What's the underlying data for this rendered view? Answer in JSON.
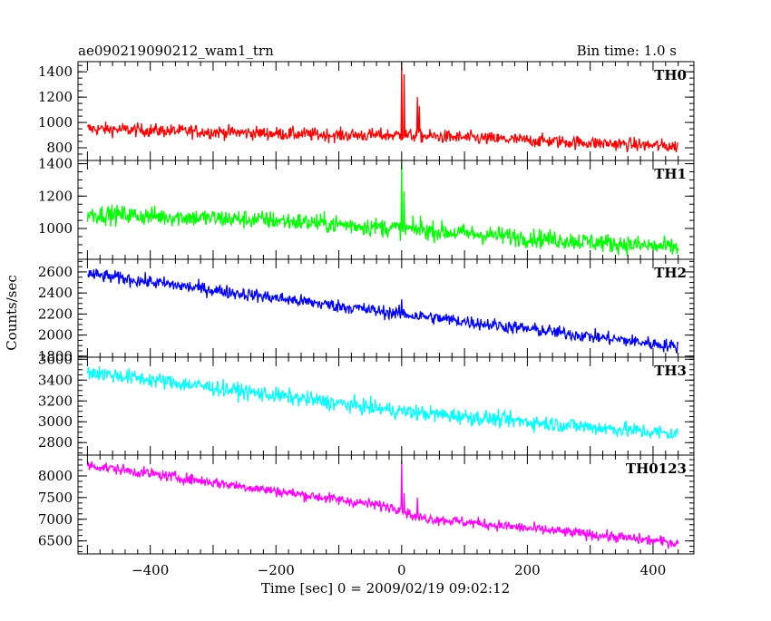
{
  "header": {
    "title": "ae090219090212_wam1_trn",
    "bin_time": "Bin time: 1.0 s"
  },
  "axes": {
    "ylabel": "Counts/sec",
    "xlabel": "Time [sec] 0 = 2009/02/19 09:02:12",
    "x_ticks": [
      -400,
      -200,
      0,
      200,
      400
    ],
    "x_tick_labels": [
      "−400",
      "−200",
      "0",
      "200",
      "400"
    ],
    "xlim": [
      -515,
      465
    ]
  },
  "chart_data": [
    {
      "type": "line",
      "name": "TH0",
      "color": "#ff0000",
      "ylim": [
        700,
        1480
      ],
      "y_ticks": [
        800,
        1000,
        1200,
        1400
      ],
      "x_range": [
        -500,
        440
      ],
      "trend": [
        [
          -500,
          950
        ],
        [
          -100,
          900
        ],
        [
          0,
          900
        ],
        [
          100,
          880
        ],
        [
          440,
          810
        ]
      ],
      "noise": 38,
      "spikes": [
        [
          0,
          1480
        ],
        [
          4,
          1380
        ],
        [
          25,
          1200
        ],
        [
          28,
          1130
        ]
      ]
    },
    {
      "type": "line",
      "name": "TH1",
      "color": "#00ff00",
      "ylim": [
        810,
        1420
      ],
      "y_ticks": [
        1000,
        1200,
        1400
      ],
      "x_range": [
        -500,
        440
      ],
      "trend": [
        [
          -500,
          1090
        ],
        [
          -200,
          1050
        ],
        [
          0,
          1000
        ],
        [
          100,
          970
        ],
        [
          440,
          880
        ]
      ],
      "noise": 42,
      "spikes": [
        [
          0,
          1410
        ],
        [
          4,
          1230
        ],
        [
          30,
          1080
        ]
      ]
    },
    {
      "type": "line",
      "name": "TH2",
      "color": "#0000ff",
      "ylim": [
        1790,
        2720
      ],
      "y_ticks": [
        1800,
        2000,
        2200,
        2400,
        2600
      ],
      "x_range": [
        -500,
        440
      ],
      "trend": [
        [
          -500,
          2580
        ],
        [
          0,
          2200
        ],
        [
          440,
          1890
        ]
      ],
      "noise": 45,
      "spikes": [
        [
          0,
          2340
        ]
      ]
    },
    {
      "type": "line",
      "name": "TH3",
      "color": "#00ffff",
      "ylim": [
        2680,
        3620
      ],
      "y_ticks": [
        2800,
        3000,
        3200,
        3400,
        3600
      ],
      "x_range": [
        -500,
        440
      ],
      "trend": [
        [
          -500,
          3480
        ],
        [
          0,
          3100
        ],
        [
          440,
          2880
        ]
      ],
      "noise": 55,
      "spikes": []
    },
    {
      "type": "line",
      "name": "TH0123",
      "color": "#ff00ff",
      "ylim": [
        6200,
        8480
      ],
      "y_ticks": [
        6500,
        7000,
        7500,
        8000
      ],
      "x_range": [
        -500,
        440
      ],
      "trend": [
        [
          -500,
          8250
        ],
        [
          -300,
          7850
        ],
        [
          0,
          7250
        ],
        [
          20,
          7050
        ],
        [
          440,
          6450
        ]
      ],
      "noise": 90,
      "spikes": [
        [
          0,
          8350
        ],
        [
          4,
          7600
        ],
        [
          25,
          7500
        ]
      ]
    }
  ]
}
